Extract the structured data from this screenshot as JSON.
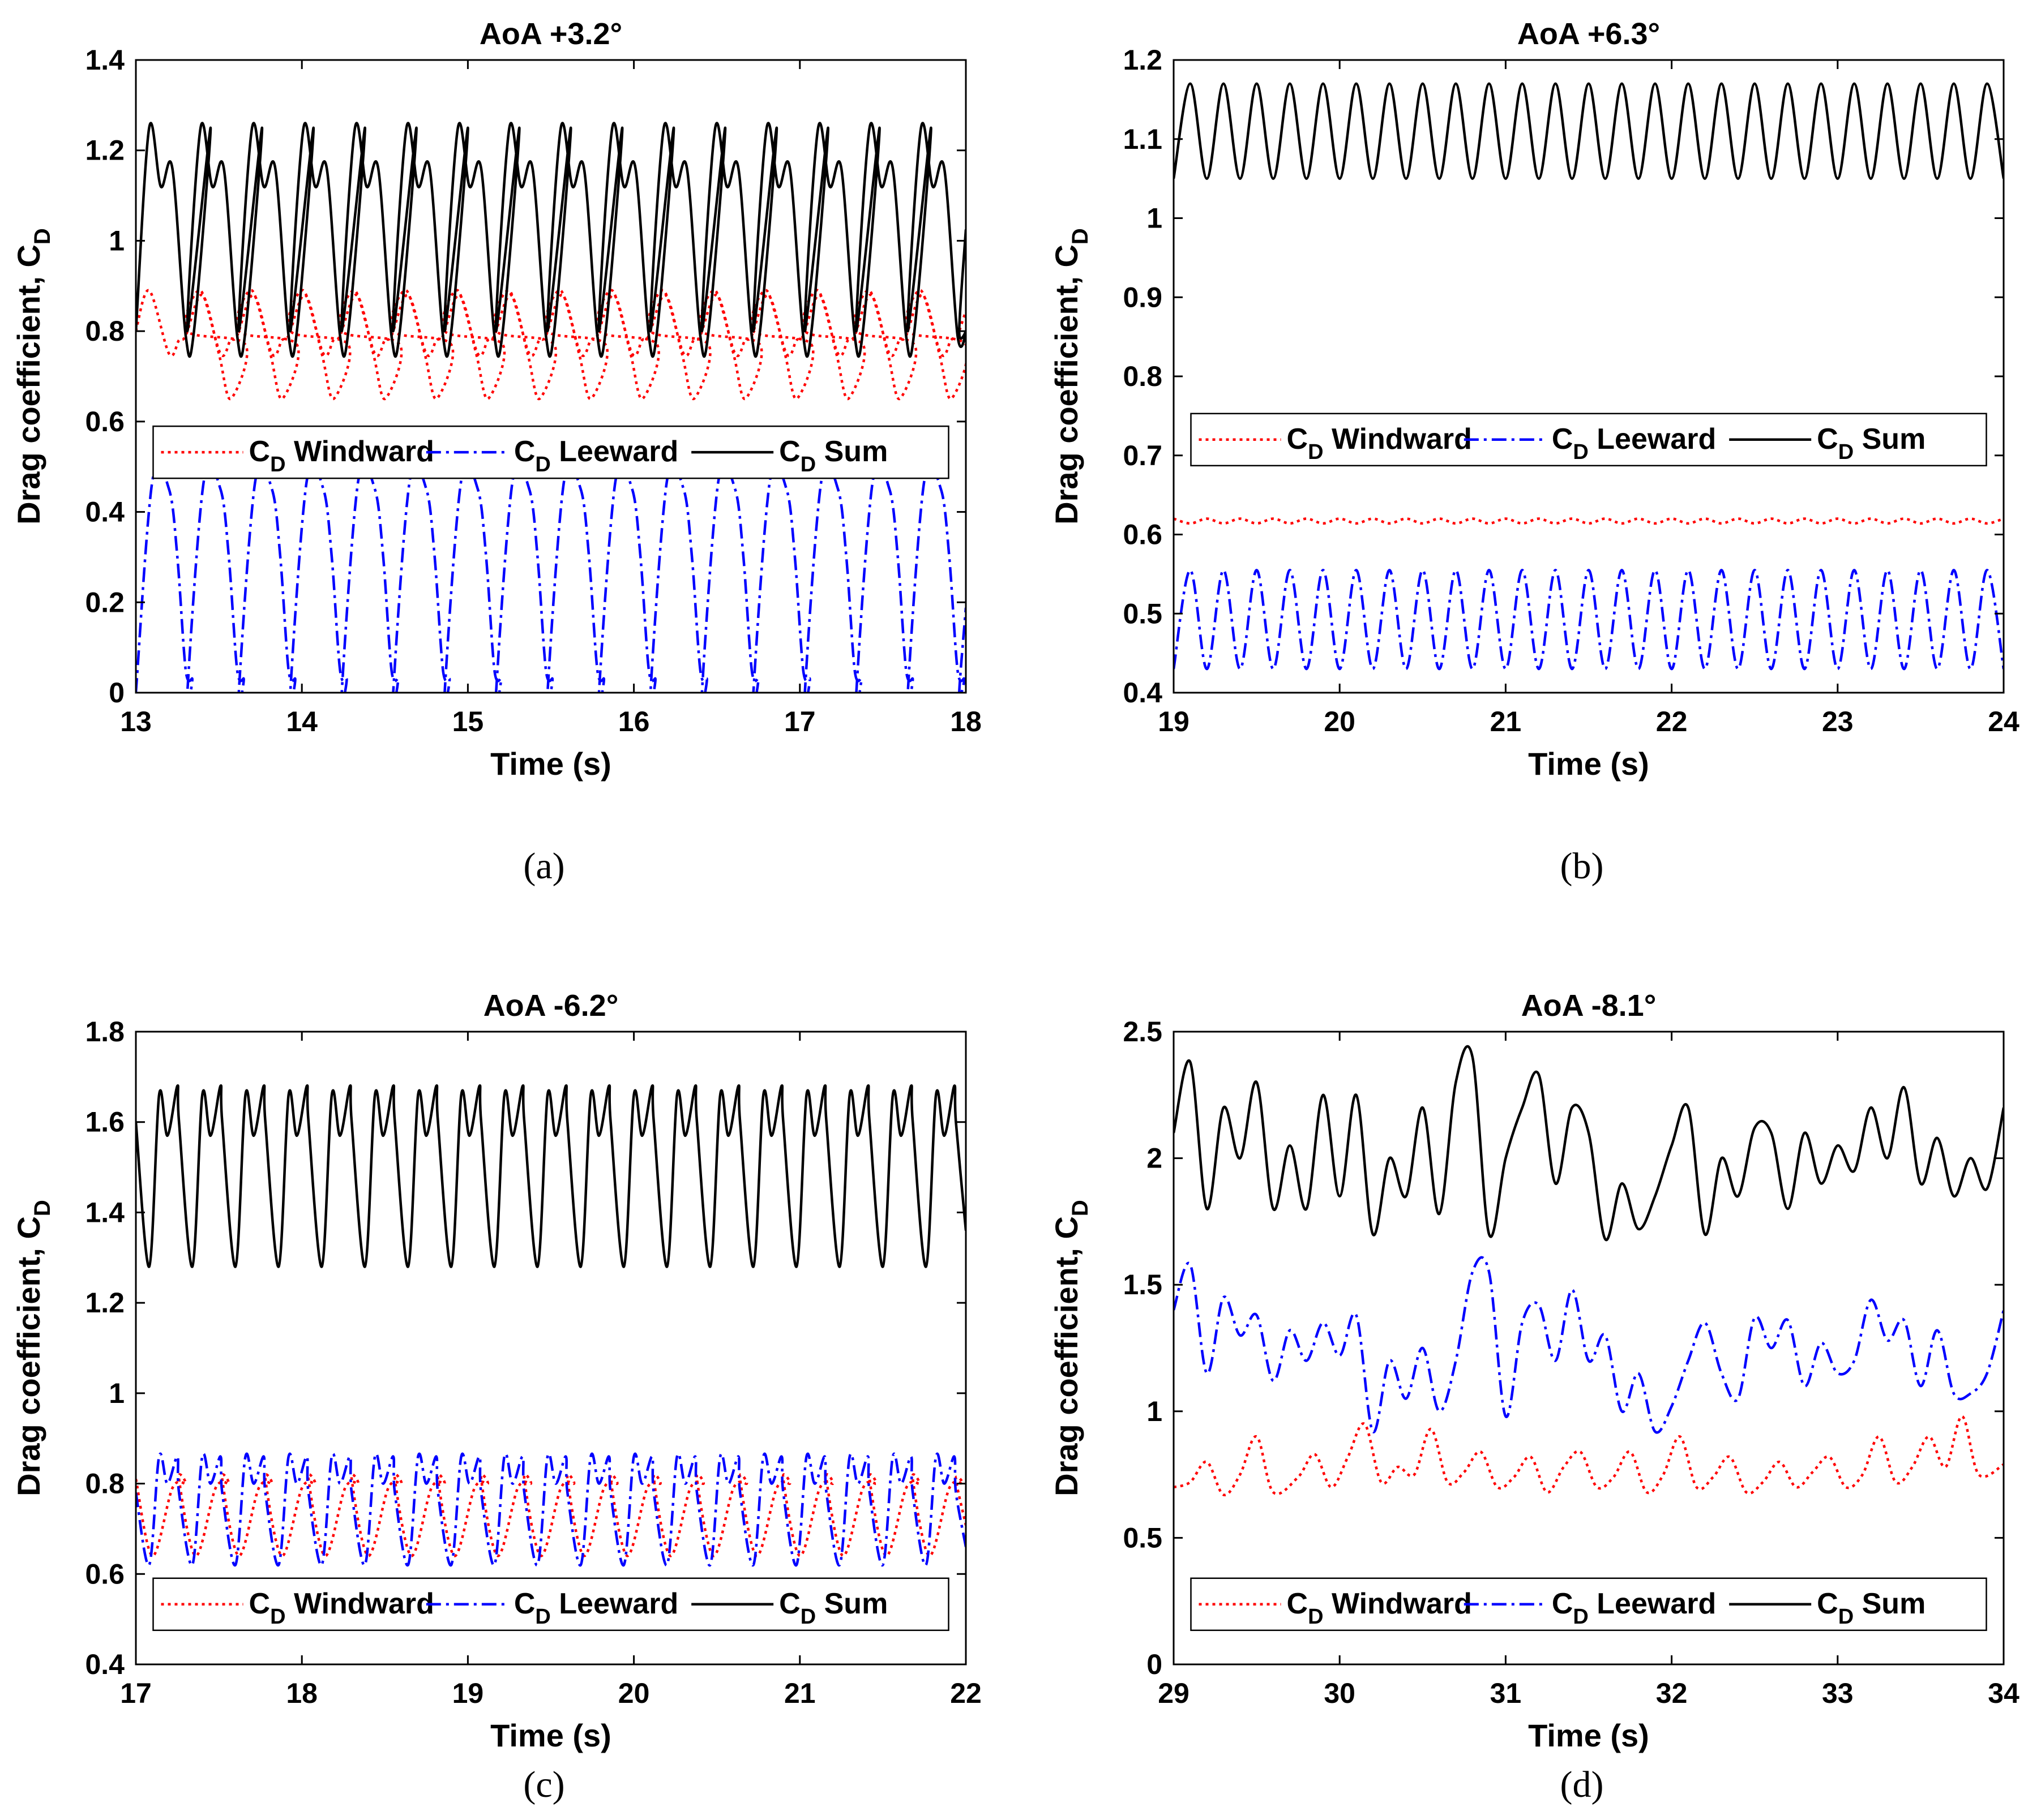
{
  "chart_data": [
    {
      "id": "a",
      "type": "line",
      "title": "AoA +3.2°",
      "caption": "(a)",
      "xlabel": "Time (s)",
      "ylabel": "Drag coefficient, C",
      "ylabel_sub": "D",
      "xlim": [
        13,
        18
      ],
      "ylim": [
        0,
        1.4
      ],
      "xticks": [
        "13",
        "14",
        "15",
        "16",
        "17",
        "18"
      ],
      "yticks": [
        "0",
        "0.2",
        "0.4",
        "0.6",
        "0.8",
        "1",
        "1.2",
        "1.4"
      ],
      "legend": {
        "position": "middle",
        "entries": [
          {
            "prefix": "C",
            "sub": "D",
            "text": " Windward"
          },
          {
            "prefix": "C",
            "sub": "D",
            "text": " Leeward"
          },
          {
            "prefix": "C",
            "sub": "D",
            "text": " Sum"
          }
        ]
      },
      "series": [
        {
          "name": "CD Windward",
          "color": "#ff0000",
          "style": "dotted",
          "x": [
            13.0,
            13.08,
            13.2,
            13.26,
            13.3,
            13.4,
            13.5,
            13.57,
            13.66,
            13.7
          ],
          "y": [
            0.8,
            0.89,
            0.75,
            0.78,
            0.79,
            0.88,
            0.75,
            0.65,
            0.77,
            0.8
          ],
          "period": 0.31
        },
        {
          "name": "CD Leeward",
          "color": "#0000ff",
          "style": "dashdot",
          "x": [
            13.0,
            13.1,
            13.2,
            13.25,
            13.3,
            13.34,
            13.45
          ],
          "y": [
            0.0,
            0.47,
            0.45,
            0.3,
            0.05,
            0.03,
            0.48
          ],
          "period": 0.31
        },
        {
          "name": "CD Sum",
          "color": "#000000",
          "style": "solid",
          "x": [
            13.0,
            13.08,
            13.15,
            13.22,
            13.3,
            13.35,
            13.45,
            13.52
          ],
          "y": [
            0.8,
            1.25,
            1.12,
            1.16,
            0.79,
            0.8,
            1.25,
            1.12
          ],
          "period": 0.31
        }
      ]
    },
    {
      "id": "b",
      "type": "line",
      "title": "AoA +6.3°",
      "caption": "(b)",
      "xlabel": "Time (s)",
      "ylabel": "Drag coefficient, C",
      "ylabel_sub": "D",
      "xlim": [
        19,
        24
      ],
      "ylim": [
        0.4,
        1.2
      ],
      "xticks": [
        "19",
        "20",
        "21",
        "22",
        "23",
        "24"
      ],
      "yticks": [
        "0.4",
        "0.5",
        "0.6",
        "0.7",
        "0.8",
        "0.9",
        "1",
        "1.1",
        "1.2"
      ],
      "legend": {
        "position": "middle",
        "entries": [
          {
            "prefix": "C",
            "sub": "D",
            "text": " Windward"
          },
          {
            "prefix": "C",
            "sub": "D",
            "text": " Leeward"
          },
          {
            "prefix": "C",
            "sub": "D",
            "text": " Sum"
          }
        ]
      },
      "series": [
        {
          "name": "CD Windward",
          "color": "#ff0000",
          "style": "dotted",
          "x": [
            19.0,
            19.1,
            19.2
          ],
          "y": [
            0.62,
            0.614,
            0.62
          ],
          "period": 0.2
        },
        {
          "name": "CD Leeward",
          "color": "#0000ff",
          "style": "dashdot",
          "x": [
            19.0,
            19.1,
            19.2
          ],
          "y": [
            0.43,
            0.555,
            0.43
          ],
          "period": 0.2
        },
        {
          "name": "CD Sum",
          "color": "#000000",
          "style": "solid",
          "x": [
            19.0,
            19.1,
            19.2
          ],
          "y": [
            1.05,
            1.17,
            1.05
          ],
          "period": 0.2
        }
      ]
    },
    {
      "id": "c",
      "type": "line",
      "title": "AoA -6.2°",
      "caption": "(c)",
      "xlabel": "Time (s)",
      "ylabel": "Drag coefficient, C",
      "ylabel_sub": "D",
      "xlim": [
        17,
        22
      ],
      "ylim": [
        0.4,
        1.8
      ],
      "xticks": [
        "17",
        "18",
        "19",
        "20",
        "21",
        "22"
      ],
      "yticks": [
        "0.4",
        "0.6",
        "0.8",
        "1",
        "1.2",
        "1.4",
        "1.6",
        "1.8"
      ],
      "legend": {
        "position": "bottom",
        "entries": [
          {
            "prefix": "C",
            "sub": "D",
            "text": " Windward"
          },
          {
            "prefix": "C",
            "sub": "D",
            "text": " Leeward"
          },
          {
            "prefix": "C",
            "sub": "D",
            "text": " Sum"
          }
        ]
      },
      "series": [
        {
          "name": "CD Windward",
          "color": "#ff0000",
          "style": "dotted",
          "x": [
            17.0,
            17.1,
            17.22,
            17.3,
            17.4
          ],
          "y": [
            0.81,
            0.64,
            0.79,
            0.8,
            0.81
          ],
          "period": 0.26
        },
        {
          "name": "CD Leeward",
          "color": "#0000ff",
          "style": "dashdot",
          "x": [
            17.0,
            17.08,
            17.14,
            17.19,
            17.25,
            17.3
          ],
          "y": [
            0.78,
            0.62,
            0.86,
            0.8,
            0.86,
            0.78
          ],
          "period": 0.26
        },
        {
          "name": "CD Sum",
          "color": "#000000",
          "style": "solid",
          "x": [
            17.0,
            17.08,
            17.14,
            17.19,
            17.25,
            17.3
          ],
          "y": [
            1.6,
            1.28,
            1.66,
            1.57,
            1.68,
            1.6
          ],
          "period": 0.26
        }
      ]
    },
    {
      "id": "d",
      "type": "line",
      "title": "AoA -8.1°",
      "caption": "(d)",
      "xlabel": "Time (s)",
      "ylabel": "Drag coefficient, C",
      "ylabel_sub": "D",
      "xlim": [
        29,
        34
      ],
      "ylim": [
        0,
        2.5
      ],
      "xticks": [
        "29",
        "30",
        "31",
        "32",
        "33",
        "34"
      ],
      "yticks": [
        "0",
        "0.5",
        "1",
        "1.5",
        "2",
        "2.5"
      ],
      "legend": {
        "position": "bottom",
        "entries": [
          {
            "prefix": "C",
            "sub": "D",
            "text": " Windward"
          },
          {
            "prefix": "C",
            "sub": "D",
            "text": " Leeward"
          },
          {
            "prefix": "C",
            "sub": "D",
            "text": " Sum"
          }
        ]
      },
      "series": [
        {
          "name": "CD Windward",
          "color": "#ff0000",
          "style": "dotted",
          "x": [
            29.0,
            29.1,
            29.2,
            29.3,
            29.4,
            29.5,
            29.6,
            29.75,
            29.85,
            29.95,
            30.05,
            30.15,
            30.25,
            30.35,
            30.45,
            30.55,
            30.65,
            30.75,
            30.85,
            30.95,
            31.05,
            31.15,
            31.25,
            31.35,
            31.45,
            31.55,
            31.65,
            31.75,
            31.85,
            31.95,
            32.05,
            32.15,
            32.25,
            32.35,
            32.45,
            32.55,
            32.65,
            32.75,
            32.85,
            32.95,
            33.05,
            33.15,
            33.25,
            33.35,
            33.45,
            33.55,
            33.65,
            33.75,
            33.85,
            34.0
          ],
          "y": [
            0.7,
            0.72,
            0.8,
            0.67,
            0.75,
            0.9,
            0.68,
            0.74,
            0.83,
            0.7,
            0.82,
            0.95,
            0.72,
            0.78,
            0.75,
            0.93,
            0.72,
            0.76,
            0.84,
            0.7,
            0.74,
            0.82,
            0.68,
            0.78,
            0.84,
            0.7,
            0.74,
            0.84,
            0.68,
            0.75,
            0.9,
            0.7,
            0.74,
            0.82,
            0.68,
            0.72,
            0.8,
            0.7,
            0.76,
            0.82,
            0.7,
            0.75,
            0.9,
            0.72,
            0.78,
            0.9,
            0.78,
            0.98,
            0.75,
            0.79
          ]
        },
        {
          "name": "CD Leeward",
          "color": "#0000ff",
          "style": "dashdot",
          "x": [
            29.0,
            29.1,
            29.2,
            29.3,
            29.4,
            29.5,
            29.6,
            29.7,
            29.8,
            29.9,
            30.0,
            30.1,
            30.2,
            30.3,
            30.4,
            30.5,
            30.6,
            30.7,
            30.8,
            30.9,
            31.0,
            31.1,
            31.2,
            31.3,
            31.4,
            31.5,
            31.6,
            31.7,
            31.8,
            31.9,
            32.0,
            32.1,
            32.2,
            32.3,
            32.4,
            32.5,
            32.6,
            32.7,
            32.8,
            32.9,
            33.0,
            33.1,
            33.2,
            33.3,
            33.4,
            33.5,
            33.6,
            33.7,
            33.8,
            33.9,
            34.0
          ],
          "y": [
            1.4,
            1.58,
            1.15,
            1.45,
            1.3,
            1.38,
            1.12,
            1.32,
            1.2,
            1.35,
            1.22,
            1.38,
            0.92,
            1.2,
            1.05,
            1.25,
            1.0,
            1.2,
            1.55,
            1.55,
            0.98,
            1.35,
            1.42,
            1.2,
            1.48,
            1.2,
            1.3,
            1.0,
            1.15,
            0.92,
            1.02,
            1.2,
            1.35,
            1.15,
            1.05,
            1.37,
            1.25,
            1.36,
            1.1,
            1.27,
            1.15,
            1.2,
            1.44,
            1.28,
            1.36,
            1.1,
            1.32,
            1.07,
            1.07,
            1.15,
            1.4
          ]
        },
        {
          "name": "CD Sum",
          "color": "#000000",
          "style": "solid",
          "x": [
            29.0,
            29.1,
            29.2,
            29.3,
            29.4,
            29.5,
            29.6,
            29.7,
            29.8,
            29.9,
            30.0,
            30.1,
            30.2,
            30.3,
            30.4,
            30.5,
            30.6,
            30.7,
            30.8,
            30.9,
            31.0,
            31.1,
            31.2,
            31.3,
            31.4,
            31.5,
            31.6,
            31.7,
            31.8,
            31.9,
            32.0,
            32.1,
            32.2,
            32.3,
            32.4,
            32.5,
            32.6,
            32.7,
            32.8,
            32.9,
            33.0,
            33.1,
            33.2,
            33.3,
            33.4,
            33.5,
            33.6,
            33.7,
            33.8,
            33.9,
            34.0
          ],
          "y": [
            2.1,
            2.38,
            1.8,
            2.2,
            2.0,
            2.3,
            1.8,
            2.05,
            1.8,
            2.25,
            1.85,
            2.25,
            1.7,
            2.0,
            1.85,
            2.2,
            1.78,
            2.3,
            2.4,
            1.7,
            2.0,
            2.2,
            2.33,
            1.9,
            2.2,
            2.1,
            1.68,
            1.9,
            1.72,
            1.85,
            2.05,
            2.2,
            1.7,
            2.0,
            1.85,
            2.12,
            2.1,
            1.8,
            2.1,
            1.9,
            2.05,
            1.95,
            2.2,
            2.0,
            2.28,
            1.9,
            2.08,
            1.85,
            2.0,
            1.88,
            2.2
          ]
        }
      ]
    }
  ]
}
